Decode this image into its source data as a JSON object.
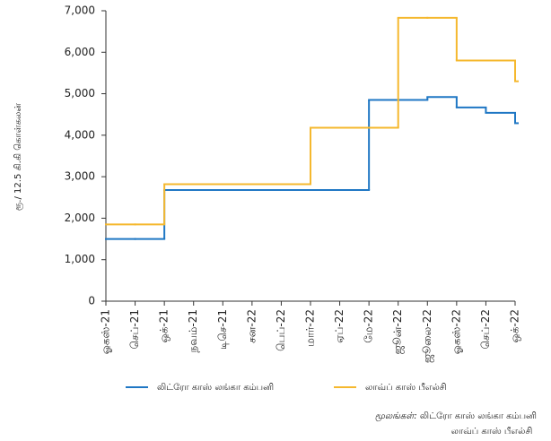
{
  "chart_data": {
    "type": "step-line",
    "y_label": "ரூ./ 12.5 கி.கி கொள்கலன்",
    "categories": [
      "ஓகஸ்-21",
      "செப்-21",
      "ஒக்-21",
      "நவம்-21",
      "டிசெ-21",
      "சன-22",
      "பெப்-22",
      "மார்-22",
      "ஏப்-22",
      "மே-22",
      "ஜூன்-22",
      "ஜூலை-22",
      "ஓகஸ்-22",
      "செப்-22",
      "ஒக்-22"
    ],
    "series": [
      {
        "name": "லிட்ரோ காஸ் லங்கா கம்பனி",
        "color": "#1f77c4",
        "values": [
          1500,
          1500,
          2680,
          2680,
          2680,
          2680,
          2680,
          2680,
          2680,
          4850,
          4850,
          4920,
          4670,
          4540,
          4290
        ]
      },
      {
        "name": "லாவ்ப் காஸ் பீஎல்சி",
        "color": "#f5b82e",
        "values": [
          1850,
          1850,
          2820,
          2820,
          2820,
          2820,
          2820,
          4180,
          4180,
          4180,
          6830,
          6830,
          5800,
          5800,
          5300
        ]
      }
    ],
    "ylim": [
      0,
      7000
    ],
    "yticks": [
      0,
      {
        "value": 1000,
        "label": "1,000"
      },
      {
        "value": 2000,
        "label": "2,000"
      },
      {
        "value": 3000,
        "label": "3,000"
      },
      {
        "value": 4000,
        "label": "4,000"
      },
      {
        "value": 5000,
        "label": "5,000"
      },
      {
        "value": 6000,
        "label": "6,000"
      },
      {
        "value": 7000,
        "label": "7,000"
      }
    ],
    "legend": "bottom",
    "source_label": "மூலங்கள்:",
    "source_lines": [
      "லிட்ரோ காஸ் லங்கா கம்பனி",
      "லாவ்ப் காஸ் பீஎல்சி"
    ]
  }
}
